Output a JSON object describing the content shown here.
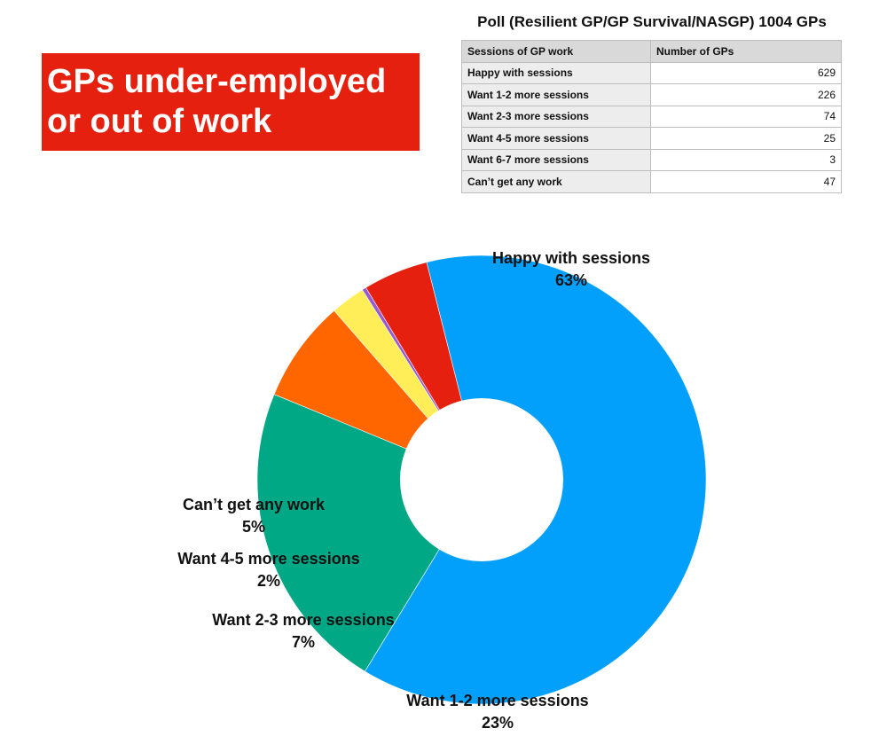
{
  "banner": {
    "line1": "GPs under-employed",
    "line2": "or out of work",
    "background": "#e5200f",
    "text_color": "#ffffff"
  },
  "table": {
    "title": "Poll (Resilient GP/GP Survival/NASGP) 1004 GPs",
    "headers": [
      "Sessions of GP work",
      "Number of GPs"
    ],
    "rows": [
      {
        "label": "Happy with sessions",
        "value": "629"
      },
      {
        "label": "Want 1-2 more sessions",
        "value": "226"
      },
      {
        "label": "Want 2-3 more sessions",
        "value": "74"
      },
      {
        "label": "Want 4-5 more sessions",
        "value": "25"
      },
      {
        "label": "Want 6-7 more sessions",
        "value": "3"
      },
      {
        "label": "Can’t get any work",
        "value": "47"
      }
    ]
  },
  "chart_data": {
    "type": "pie",
    "donut": true,
    "title": "",
    "categories": [
      "Happy with sessions",
      "Want 1-2 more sessions",
      "Want 2-3 more sessions",
      "Want 4-5 more sessions",
      "Want 6-7 more sessions",
      "Can’t get any work"
    ],
    "values": [
      629,
      226,
      74,
      25,
      3,
      47
    ],
    "colors": [
      "#03a0fb",
      "#00a886",
      "#ff6600",
      "#ffee58",
      "#9b59d0",
      "#e5200f"
    ],
    "labels": [
      {
        "name": "Happy with sessions",
        "percent": "63%"
      },
      {
        "name": "Want 1-2 more sessions",
        "percent": "23%"
      },
      {
        "name": "Want 2-3 more sessions",
        "percent": "7%"
      },
      {
        "name": "Want 4-5 more sessions",
        "percent": "2%"
      },
      {
        "name": "",
        "percent": ""
      },
      {
        "name": "Can’t get any work",
        "percent": "5%"
      }
    ]
  }
}
